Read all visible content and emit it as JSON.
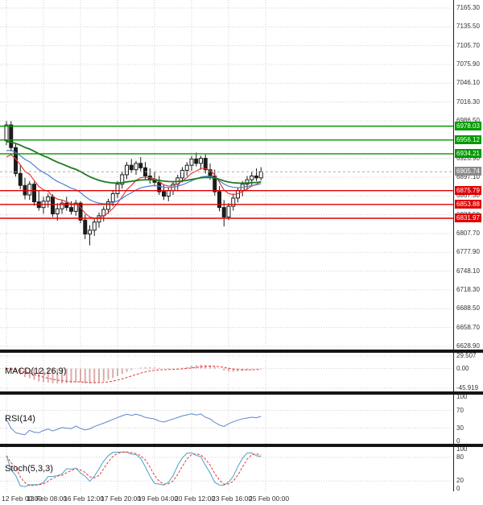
{
  "theme": {
    "grid": "#d0d0d0",
    "candle_up": "#ffffff",
    "candle_down": "#1c1c1c",
    "candle_stroke": "#1c1c1c",
    "resistance": "#009900",
    "support": "#dd0000",
    "current_line": "#aaaaaa",
    "macd_hist": "#dcaaaa",
    "macd_signal": "#e53935",
    "rsi_line": "#5b87c9",
    "stoch_k": "#4aa0c8",
    "stoch_d": "#e53935",
    "separator": "#151515",
    "axis_text": "#333333"
  },
  "chart_data": {
    "type": "candlestick",
    "timeframe": "H4",
    "title": "",
    "last_price": 6905.74,
    "y_axis_range": [
      6628.9,
      7165.3
    ],
    "price_step": 29.8,
    "y_tick_labels": [
      "7165.30",
      "7135.50",
      "7105.70",
      "7075.90",
      "7046.10",
      "7016.30",
      "6986.50",
      "6956.70",
      "6926.90",
      "6897.10",
      "6867.30",
      "6837.50",
      "6807.70",
      "6777.90",
      "6748.10",
      "6718.30",
      "6688.50",
      "6658.70",
      "6628.90"
    ],
    "x_tick_labels": [
      "12 Feb 00:00",
      "13 Feb 08:00",
      "16 Feb 12:00",
      "17 Feb 20:00",
      "19 Feb 04:00",
      "20 Feb 12:00",
      "23 Feb 16:00",
      "25 Feb 00:00"
    ],
    "levels": {
      "resistance": [
        {
          "price": 6978.03,
          "label": "6978.03"
        },
        {
          "price": 6956.12,
          "label": "6956.12"
        },
        {
          "price": 6934.21,
          "label": "6934.21"
        }
      ],
      "support": [
        {
          "price": 6875.79,
          "label": "6875.79"
        },
        {
          "price": 6853.88,
          "label": "6853.88"
        },
        {
          "price": 6831.97,
          "label": "6831.97"
        }
      ],
      "current": {
        "price": 6905.74,
        "label": "6905.74"
      }
    },
    "candles_ohlc": [
      [
        6955,
        6986,
        6948,
        6980
      ],
      [
        6980,
        6986,
        6938,
        6944
      ],
      [
        6944,
        6950,
        6898,
        6903
      ],
      [
        6903,
        6916,
        6878,
        6884
      ],
      [
        6884,
        6896,
        6862,
        6869
      ],
      [
        6869,
        6891,
        6861,
        6886
      ],
      [
        6886,
        6890,
        6852,
        6858
      ],
      [
        6858,
        6876,
        6844,
        6849
      ],
      [
        6849,
        6866,
        6839,
        6859
      ],
      [
        6859,
        6871,
        6849,
        6866
      ],
      [
        6866,
        6870,
        6834,
        6839
      ],
      [
        6839,
        6856,
        6828,
        6847
      ],
      [
        6847,
        6861,
        6839,
        6856
      ],
      [
        6856,
        6866,
        6844,
        6849
      ],
      [
        6849,
        6859,
        6838,
        6843
      ],
      [
        6843,
        6861,
        6836,
        6856
      ],
      [
        6856,
        6859,
        6824,
        6829
      ],
      [
        6829,
        6838,
        6799,
        6807
      ],
      [
        6807,
        6821,
        6789,
        6813
      ],
      [
        6813,
        6831,
        6804,
        6826
      ],
      [
        6826,
        6841,
        6817,
        6836
      ],
      [
        6836,
        6851,
        6827,
        6846
      ],
      [
        6846,
        6863,
        6839,
        6858
      ],
      [
        6858,
        6876,
        6851,
        6871
      ],
      [
        6871,
        6891,
        6864,
        6886
      ],
      [
        6886,
        6906,
        6879,
        6901
      ],
      [
        6901,
        6921,
        6894,
        6916
      ],
      [
        6916,
        6926,
        6904,
        6909
      ],
      [
        6909,
        6923,
        6901,
        6919
      ],
      [
        6919,
        6929,
        6907,
        6912
      ],
      [
        6912,
        6921,
        6894,
        6899
      ],
      [
        6899,
        6911,
        6887,
        6894
      ],
      [
        6894,
        6906,
        6884,
        6889
      ],
      [
        6889,
        6899,
        6869,
        6874
      ],
      [
        6874,
        6886,
        6861,
        6867
      ],
      [
        6867,
        6881,
        6859,
        6876
      ],
      [
        6876,
        6891,
        6869,
        6886
      ],
      [
        6886,
        6901,
        6877,
        6896
      ],
      [
        6896,
        6913,
        6889,
        6908
      ],
      [
        6908,
        6921,
        6899,
        6916
      ],
      [
        6916,
        6931,
        6907,
        6926
      ],
      [
        6926,
        6936,
        6914,
        6919
      ],
      [
        6919,
        6931,
        6909,
        6927
      ],
      [
        6927,
        6933,
        6903,
        6909
      ],
      [
        6909,
        6919,
        6893,
        6899
      ],
      [
        6899,
        6909,
        6868,
        6874
      ],
      [
        6874,
        6883,
        6843,
        6849
      ],
      [
        6849,
        6861,
        6819,
        6834
      ],
      [
        6834,
        6856,
        6829,
        6851
      ],
      [
        6851,
        6871,
        6844,
        6864
      ],
      [
        6864,
        6881,
        6857,
        6876
      ],
      [
        6876,
        6891,
        6867,
        6886
      ],
      [
        6886,
        6899,
        6877,
        6893
      ],
      [
        6893,
        6906,
        6884,
        6899
      ],
      [
        6899,
        6911,
        6891,
        6896
      ],
      [
        6896,
        6913,
        6892,
        6905.74
      ]
    ],
    "indicators": {
      "moving_averages": [
        {
          "name": "ema-fast-red",
          "period": 8,
          "init": 6915,
          "color": "#e53935",
          "width": 1.2
        },
        {
          "name": "ema-mid-blue",
          "period": 20,
          "init": 6935,
          "color": "#4a7fd4",
          "width": 1.2
        },
        {
          "name": "ema-slow-green",
          "period": 45,
          "init": 6952,
          "color": "#1f7a1f",
          "width": 1.8
        }
      ],
      "macd": {
        "label": "MACD(12,26,9)",
        "fast": 12,
        "slow": 26,
        "signal": 9,
        "ticks": [
          "29.507",
          "0.00",
          "-45.919"
        ],
        "range": [
          -45.919,
          29.507
        ]
      },
      "rsi": {
        "label": "RSI(14)",
        "period": 14,
        "ticks": [
          "100",
          "70",
          "30",
          "0"
        ],
        "guides": [
          70,
          30
        ],
        "range": [
          0,
          100
        ]
      },
      "stoch": {
        "label": "Stoch(5,3,3)",
        "k": 5,
        "d": 3,
        "slowing": 3,
        "ticks": [
          "100",
          "80",
          "20",
          "0"
        ],
        "guides": [
          80,
          20
        ],
        "range": [
          0,
          100
        ]
      }
    }
  }
}
